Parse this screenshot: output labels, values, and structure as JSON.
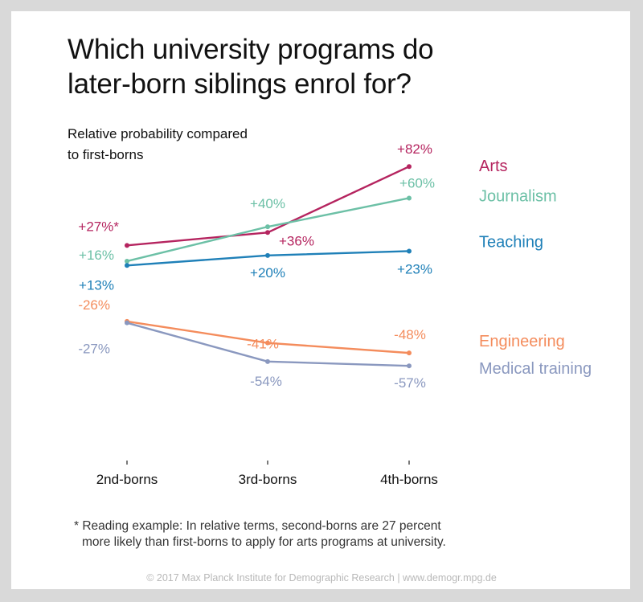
{
  "title_line1": "Which university programs do",
  "title_line2": "later-born siblings enrol for?",
  "subtitle_line1": "Relative probability compared",
  "subtitle_line2": "to first-borns",
  "footnote_line1": "* Reading example: In relative terms, second-borns are 27 percent",
  "footnote_line2": "more likely than first-borns to apply for arts programs at university.",
  "credit": "© 2017 Max Planck Institute for Demographic Research | www.demogr.mpg.de",
  "chart_data": {
    "type": "line",
    "categories": [
      "2nd-borns",
      "3rd-borns",
      "4th-borns"
    ],
    "unit": "percent",
    "series": [
      {
        "name": "Arts",
        "color": "#b5245f",
        "values": [
          27,
          36,
          82
        ],
        "labels": [
          "+27%*",
          "+36%",
          "+82%"
        ]
      },
      {
        "name": "Journalism",
        "color": "#6cc0a6",
        "values": [
          16,
          40,
          60
        ],
        "labels": [
          "+16%",
          "+40%",
          "+60%"
        ]
      },
      {
        "name": "Teaching",
        "color": "#1f80b8",
        "values": [
          13,
          20,
          23
        ],
        "labels": [
          "+13%",
          "+20%",
          "+23%"
        ]
      },
      {
        "name": "Engineering",
        "color": "#f48c5c",
        "values": [
          -26,
          -41,
          -48
        ],
        "labels": [
          "-26%",
          "-41%",
          "-48%"
        ]
      },
      {
        "name": "Medical training",
        "color": "#8a98bf",
        "values": [
          -27,
          -54,
          -57
        ],
        "labels": [
          "-27%",
          "-54%",
          "-57%"
        ]
      }
    ],
    "grid": false,
    "legend": "right, labels at line ends"
  }
}
